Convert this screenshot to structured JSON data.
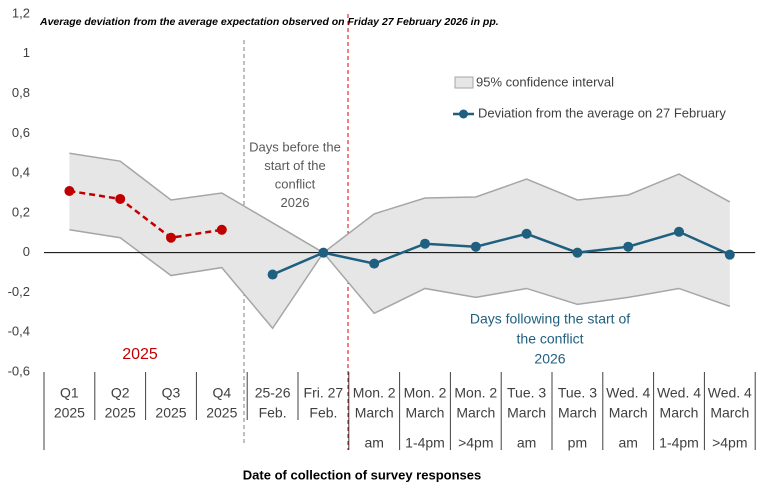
{
  "chart_data": {
    "type": "line",
    "title": "Average deviation from the average expectation observed on Friday 27 February 2026 in pp.",
    "x_label": "Date of collection of survey responses",
    "categories": [
      [
        "Q1",
        "2025"
      ],
      [
        "Q2",
        "2025"
      ],
      [
        "Q3",
        "2025"
      ],
      [
        "Q4",
        "2025"
      ],
      [
        "25-26",
        "Feb."
      ],
      [
        "Fri. 27",
        "Feb."
      ],
      [
        "Mon. 2",
        "March",
        "am"
      ],
      [
        "Mon. 2",
        "March",
        "1-4pm"
      ],
      [
        "Mon. 2",
        "March",
        ">4pm"
      ],
      [
        "Tue. 3",
        "March",
        "am"
      ],
      [
        "Tue. 3",
        "March",
        "pm"
      ],
      [
        "Wed. 4",
        "March",
        "am"
      ],
      [
        "Wed. 4",
        "March",
        "1-4pm"
      ],
      [
        "Wed. 4",
        "March",
        ">4pm"
      ]
    ],
    "series": [
      {
        "name": "Deviation from the average on 27 February",
        "color": "#1f5f7f",
        "values": [
          null,
          null,
          null,
          null,
          -0.11,
          0,
          -0.055,
          0.045,
          0.03,
          0.095,
          0,
          0.03,
          0.105,
          -0.01
        ]
      },
      {
        "name": "2025",
        "color": "#c00000",
        "values": [
          0.31,
          0.27,
          0.075,
          0.115,
          null,
          null,
          null,
          null,
          null,
          null,
          null,
          null,
          null,
          null
        ]
      }
    ],
    "confidence_interval": {
      "name": "95% confidence interval",
      "color": "#e6e6e6",
      "upper": [
        0.5,
        0.46,
        0.265,
        0.3,
        0.15,
        0,
        0.195,
        0.275,
        0.28,
        0.37,
        0.265,
        0.29,
        0.395,
        0.255
      ],
      "lower": [
        0.115,
        0.075,
        -0.115,
        -0.075,
        -0.38,
        0,
        -0.305,
        -0.18,
        -0.225,
        -0.18,
        -0.26,
        -0.225,
        -0.18,
        -0.27
      ]
    },
    "annotations": [
      [
        "Days before the",
        "start of the",
        "conflict",
        "2026"
      ],
      [
        "Days following the start of",
        "the conflict",
        "2026"
      ]
    ],
    "ylim": [
      -0.6,
      1.2
    ],
    "yticks": [
      {
        "value": -0.6,
        "label": "-0,6"
      },
      {
        "value": -0.4,
        "label": "-0,4"
      },
      {
        "value": -0.2,
        "label": "-0,2"
      },
      0,
      {
        "value": 0.2,
        "label": "0,2"
      },
      {
        "value": 0.4,
        "label": "0,4"
      },
      {
        "value": 0.6,
        "label": "0,6"
      },
      {
        "value": 0.8,
        "label": "0,8"
      },
      1,
      {
        "value": 1.2,
        "label": "1,2"
      }
    ]
  }
}
